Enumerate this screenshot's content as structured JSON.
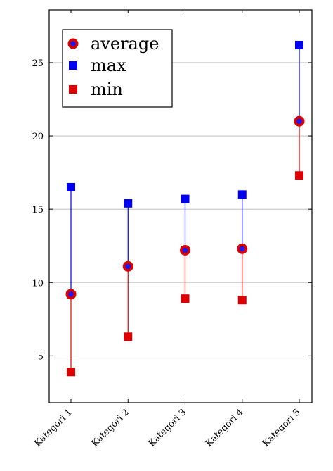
{
  "chart_data": {
    "type": "scatter",
    "title": "",
    "xlabel": "",
    "ylabel": "",
    "categories": [
      "Kategori 1",
      "Kategori 2",
      "Kategori 3",
      "Kategori 4",
      "Kategori 5"
    ],
    "ylim": [
      1.8,
      28.6
    ],
    "yticks": [
      "5",
      "10",
      "15",
      "20",
      "25"
    ],
    "grid": "horizontal",
    "legend_position": "top-left",
    "series": [
      {
        "name": "average",
        "values": [
          9.2,
          11.1,
          12.2,
          12.3,
          21.0
        ],
        "marker": "circle",
        "color": "#dd0000",
        "inner_color": "#1a1aee"
      },
      {
        "name": "max",
        "values": [
          16.5,
          15.4,
          15.7,
          16.0,
          26.2
        ],
        "marker": "square",
        "color": "#0000ee"
      },
      {
        "name": "min",
        "values": [
          3.9,
          6.3,
          8.9,
          8.8,
          17.3
        ],
        "marker": "square",
        "color": "#dd0000"
      }
    ],
    "stem_colors": {
      "upper": "#0000ee",
      "lower": "#dd0000"
    }
  }
}
